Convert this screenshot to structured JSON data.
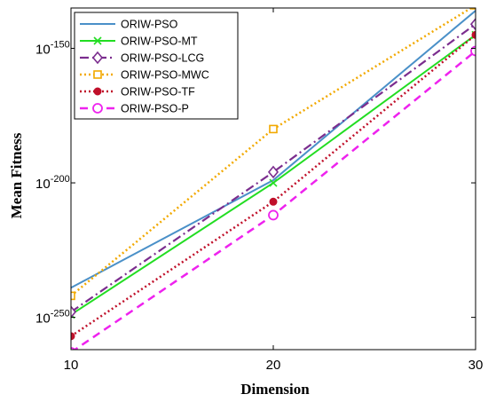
{
  "chart_data": {
    "type": "line",
    "xlabel": "Dimension",
    "ylabel": "Mean Fitness",
    "y_scale": "log",
    "x": [
      10,
      20,
      30
    ],
    "xlim": [
      10,
      30
    ],
    "x_ticks": [
      "10",
      "20",
      "30"
    ],
    "ylim_exponent": [
      -262,
      -135
    ],
    "y_ticks": [
      {
        "base": "10",
        "exp": "-150",
        "value_exponent": -150
      },
      {
        "base": "10",
        "exp": "-200",
        "value_exponent": -200
      },
      {
        "base": "10",
        "exp": "-250",
        "value_exponent": -250
      }
    ],
    "grid": false,
    "legend_position": "top-left",
    "series": [
      {
        "name": "ORIW-PSO",
        "color": "#4a90c8",
        "line_style": "solid",
        "marker": "none",
        "y_exponent": [
          -239,
          -199,
          -136
        ]
      },
      {
        "name": "ORIW-PSO-MT",
        "color": "#22dd22",
        "line_style": "solid",
        "marker": "x",
        "y_exponent": [
          -249,
          -200,
          -145
        ]
      },
      {
        "name": "ORIW-PSO-LCG",
        "color": "#7b2d8e",
        "line_style": "dashdot",
        "marker": "diamond",
        "y_exponent": [
          -248,
          -196,
          -141
        ]
      },
      {
        "name": "ORIW-PSO-MWC",
        "color": "#f2a900",
        "line_style": "dotted",
        "marker": "square",
        "y_exponent": [
          -242,
          -180,
          -134
        ]
      },
      {
        "name": "ORIW-PSO-TF",
        "color": "#c0102a",
        "line_style": "dotted",
        "marker": "filled-circle",
        "y_exponent": [
          -257,
          -207,
          -145
        ]
      },
      {
        "name": "ORIW-PSO-P",
        "color": "#ee22ee",
        "line_style": "dashed",
        "marker": "open-circle",
        "y_exponent": [
          -263,
          -212,
          -151
        ]
      }
    ]
  }
}
